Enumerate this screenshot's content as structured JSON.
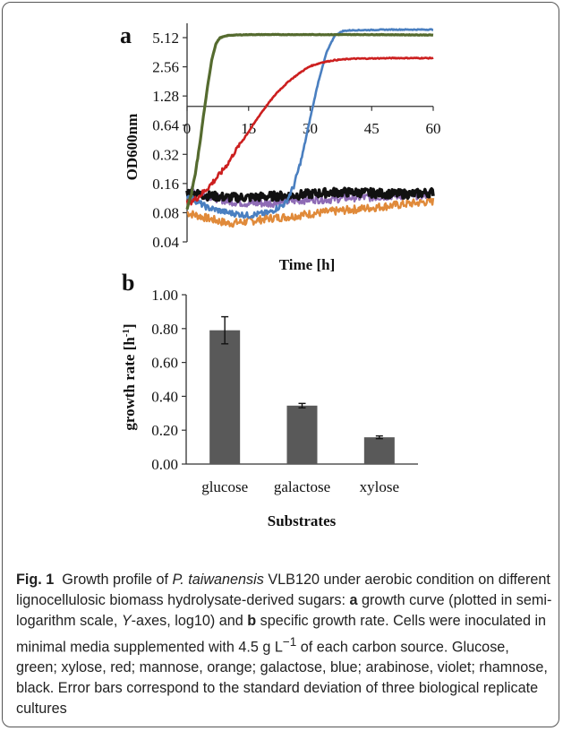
{
  "chart_data": [
    {
      "panel": "a",
      "type": "line",
      "xlabel": "Time [h]",
      "ylabel": "OD600nm",
      "xlim": [
        0,
        60
      ],
      "xticks": [
        "0",
        "15",
        "30",
        "45",
        "60"
      ],
      "yscale": "log2",
      "ylim": [
        0.04,
        7.2
      ],
      "yticks": [
        "0.04",
        "0.08",
        "0.16",
        "0.32",
        "0.64",
        "1.28",
        "2.56",
        "5.12"
      ],
      "x_axis_crossing_y": 1.0,
      "grid": false,
      "legend": "none",
      "series": [
        {
          "color": "#556b2f",
          "x": [
            0,
            1,
            2,
            3,
            4,
            5,
            6,
            7,
            8,
            10,
            12,
            15,
            20,
            30,
            45,
            60
          ],
          "y": [
            0.09,
            0.12,
            0.2,
            0.38,
            0.8,
            1.6,
            3.0,
            4.4,
            5.1,
            5.4,
            5.45,
            5.5,
            5.5,
            5.5,
            5.5,
            5.45
          ]
        },
        {
          "color": "#cc1f1f",
          "x": [
            0,
            2,
            4,
            6,
            8,
            10,
            12,
            15,
            18,
            20,
            22,
            25,
            28,
            30,
            33,
            36,
            40,
            50,
            60
          ],
          "y": [
            0.1,
            0.11,
            0.13,
            0.16,
            0.2,
            0.26,
            0.36,
            0.55,
            0.85,
            1.1,
            1.4,
            1.85,
            2.3,
            2.6,
            2.85,
            3.0,
            3.1,
            3.15,
            3.15
          ]
        },
        {
          "color": "#4a7fc0",
          "x": [
            0,
            5,
            10,
            15,
            20,
            24,
            26,
            28,
            30,
            32,
            34,
            36,
            38,
            40,
            50,
            60
          ],
          "y": [
            0.12,
            0.09,
            0.08,
            0.075,
            0.08,
            0.1,
            0.15,
            0.3,
            0.75,
            1.8,
            3.6,
            5.4,
            6.0,
            6.1,
            6.2,
            6.2
          ]
        },
        {
          "color": "#e08a3a",
          "x": [
            0,
            5,
            10,
            15,
            20,
            25,
            30,
            35,
            40,
            45,
            50,
            55,
            60
          ],
          "y": [
            0.08,
            0.07,
            0.062,
            0.065,
            0.07,
            0.073,
            0.078,
            0.082,
            0.086,
            0.09,
            0.095,
            0.1,
            0.105
          ]
        },
        {
          "color": "#8e6bb5",
          "x": [
            0,
            5,
            10,
            15,
            20,
            25,
            30,
            35,
            40,
            45,
            50,
            55,
            60
          ],
          "y": [
            0.14,
            0.12,
            0.105,
            0.1,
            0.1,
            0.105,
            0.11,
            0.11,
            0.115,
            0.115,
            0.12,
            0.12,
            0.125
          ]
        },
        {
          "color": "#111111",
          "x": [
            0,
            5,
            10,
            15,
            20,
            25,
            30,
            35,
            40,
            45,
            50,
            55,
            60
          ],
          "y": [
            0.13,
            0.12,
            0.115,
            0.115,
            0.118,
            0.12,
            0.125,
            0.13,
            0.13,
            0.128,
            0.125,
            0.125,
            0.13
          ]
        }
      ]
    },
    {
      "panel": "b",
      "type": "bar",
      "xlabel": "Substrates",
      "ylabel": "growth rate [h",
      "ylabel_sup": "-1",
      "ylabel_end": "]",
      "ylim": [
        0,
        1.0
      ],
      "yticks": [
        "0.00",
        "0.20",
        "0.40",
        "0.60",
        "0.80",
        "1.00"
      ],
      "categories": [
        "glucose",
        "galactose",
        "xylose"
      ],
      "values": [
        0.79,
        0.345,
        0.158
      ],
      "errors": [
        0.08,
        0.013,
        0.008
      ],
      "bar_color": "#595959",
      "grid": false
    }
  ],
  "caption": {
    "label": "Fig. 1",
    "t1": "Growth profile of ",
    "species": "P. taiwanensis",
    "t2": " VLB120 under aerobic condition on different lignocellulosic biomass hydrolysate-derived sugars: ",
    "a": "a",
    "t3": " growth curve (plotted in semi-logarithm scale, ",
    "yaxes": "Y",
    "t4": "-axes, log10) and ",
    "b": "b",
    "t5": " specific growth rate. Cells were inoculated in minimal media supplemented with 4.5 g L",
    "sup": "−1",
    "t6": " of each carbon source. Glucose, green; xylose, red; mannose, orange; galactose, blue; arabinose, violet; rhamnose, black. Error bars correspond to the standard deviation of three biological replicate cultures"
  }
}
